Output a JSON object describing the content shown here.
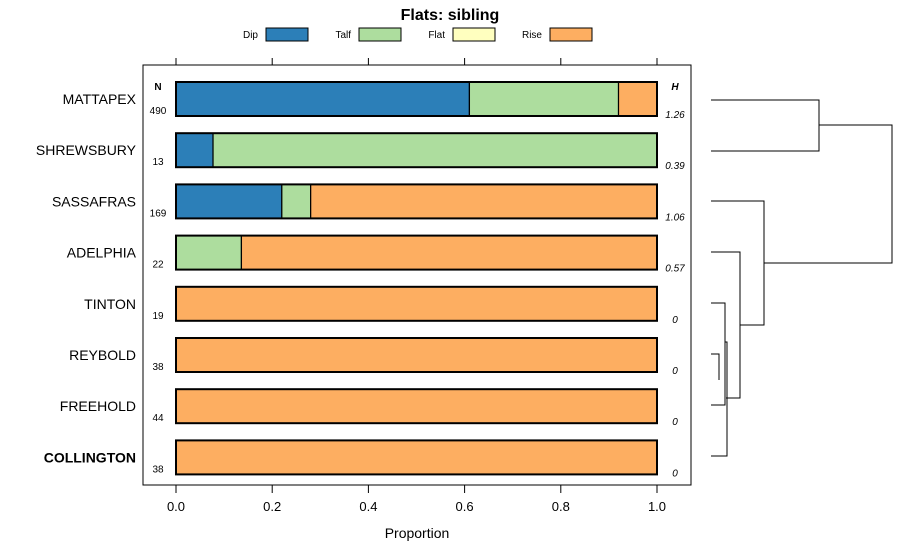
{
  "chart_data": {
    "type": "bar",
    "orientation": "horizontal",
    "stacked": true,
    "title": "Flats: sibling",
    "xlabel": "Proportion",
    "xlim": [
      0,
      1
    ],
    "xticks": [
      "0.0",
      "0.2",
      "0.4",
      "0.6",
      "0.8",
      "1.0"
    ],
    "n_header": "N",
    "h_header": "H",
    "legend": [
      {
        "key": "dip",
        "name": "Dip",
        "color": "#2c7fb8"
      },
      {
        "key": "talf",
        "name": "Talf",
        "color": "#addd9e"
      },
      {
        "key": "flat",
        "name": "Flat",
        "color": "#ffffbf"
      },
      {
        "key": "rise",
        "name": "Rise",
        "color": "#fdae61"
      }
    ],
    "rows": [
      {
        "label": "MATTAPEX",
        "n": "490",
        "h": "1.26",
        "bold": false,
        "values": {
          "dip": 0.61,
          "talf": 0.31,
          "flat": 0.0,
          "rise": 0.08
        }
      },
      {
        "label": "SHREWSBURY",
        "n": "13",
        "h": "0.39",
        "bold": false,
        "values": {
          "dip": 0.077,
          "talf": 0.923,
          "flat": 0.0,
          "rise": 0.0
        }
      },
      {
        "label": "SASSAFRAS",
        "n": "169",
        "h": "1.06",
        "bold": false,
        "values": {
          "dip": 0.22,
          "talf": 0.06,
          "flat": 0.0,
          "rise": 0.72
        }
      },
      {
        "label": "ADELPHIA",
        "n": "22",
        "h": "0.57",
        "bold": false,
        "values": {
          "dip": 0.0,
          "talf": 0.136,
          "flat": 0.0,
          "rise": 0.864
        }
      },
      {
        "label": "TINTON",
        "n": "19",
        "h": "0",
        "bold": false,
        "values": {
          "dip": 0.0,
          "talf": 0.0,
          "flat": 0.0,
          "rise": 1.0
        }
      },
      {
        "label": "REYBOLD",
        "n": "38",
        "h": "0",
        "bold": false,
        "values": {
          "dip": 0.0,
          "talf": 0.0,
          "flat": 0.0,
          "rise": 1.0
        }
      },
      {
        "label": "FREEHOLD",
        "n": "44",
        "h": "0",
        "bold": false,
        "values": {
          "dip": 0.0,
          "talf": 0.0,
          "flat": 0.0,
          "rise": 1.0
        }
      },
      {
        "label": "COLLINGTON",
        "n": "38",
        "h": "0",
        "bold": true,
        "values": {
          "dip": 0.0,
          "talf": 0.0,
          "flat": 0.0,
          "rise": 1.0
        }
      }
    ],
    "dendrogram": {
      "type": "hierarchical-clustering",
      "merges": [
        {
          "left": "REYBOLD",
          "right": "FREEHOLD",
          "height": 0.03
        },
        {
          "left": "TINTON",
          "right": "REYBOLD+FREEHOLD",
          "height": 0.05
        },
        {
          "left": "TINTON+REYBOLD+FREEHOLD",
          "right": "COLLINGTON",
          "height": 0.06
        },
        {
          "left": "ADELPHIA",
          "right": "TINTON..COLLINGTON",
          "height": 0.15
        },
        {
          "left": "SASSAFRAS",
          "right": "ADELPHIA..COLLINGTON",
          "height": 0.28
        },
        {
          "left": "MATTAPEX",
          "right": "SHREWSBURY",
          "height": 0.58
        },
        {
          "left": "MATTAPEX+SHREWSBURY",
          "right": "SASSAFRAS..COLLINGTON",
          "height": 1.0
        }
      ]
    }
  }
}
